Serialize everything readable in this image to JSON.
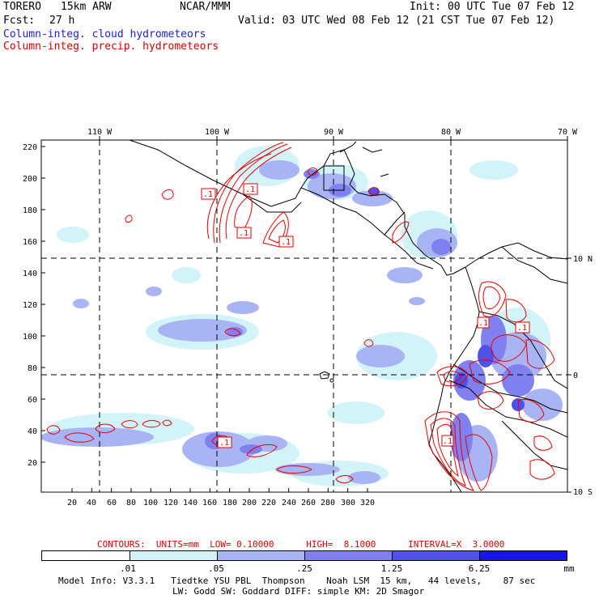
{
  "header": {
    "model": "TORERO",
    "resolution": "15km ARW",
    "org": "NCAR/MMM",
    "init": "Init: 00 UTC Tue 07 Feb 12",
    "fcst_label": "Fcst:",
    "fcst_value": "27 h",
    "valid": "Valid: 03 UTC Wed 08 Feb 12 (21 CST Tue 07 Feb 12)",
    "line_cloud": "Column-integ. cloud hydrometeors",
    "line_precip": "Column-integ. precip. hydrometeors"
  },
  "map": {
    "top_lon_labels": [
      "110 W",
      "100 W",
      "90 W",
      "80 W",
      "70 W"
    ],
    "right_lat_labels": [
      "10 N",
      "0",
      "10 S"
    ],
    "left_y_ticks": [
      "20",
      "40",
      "60",
      "80",
      "100",
      "120",
      "140",
      "160",
      "180",
      "200",
      "220"
    ],
    "bottom_x_ticks": [
      "20",
      "40",
      "60",
      "80",
      "100",
      "120",
      "140",
      "160",
      "180",
      "200",
      "220",
      "240",
      "260",
      "280",
      "300",
      "320"
    ],
    "contour_labels": [
      ".1",
      ".1",
      ".1",
      ".1",
      ".1",
      ".1",
      ".1",
      ".1"
    ],
    "colors": {
      "pale": "#d2f4f8",
      "light": "#a9b4f4",
      "mid": "#8080f0",
      "dark": "#4f4fe8",
      "contour": "#e60000",
      "grid": "#000000",
      "coast": "#000000"
    }
  },
  "footer": {
    "contours_line": "CONTOURS:  UNITS=mm  LOW= 0.10000      HIGH=  8.1000      INTERVAL=X  3.0000",
    "colorbar_labels": [
      ".01",
      ".05",
      ".25",
      "1.25",
      "6.25"
    ],
    "colorbar_unit": "mm",
    "colorbar_colors": [
      "#ffffff",
      "#d2f4f8",
      "#a9b4f4",
      "#8080f0",
      "#5050ea",
      "#1515e6"
    ],
    "info_line1": "Model Info: V3.3.1   Tiedtke YSU PBL  Thompson    Noah LSM  15 km,   44 levels,    87 sec",
    "info_line2": "LW: Godd SW: Goddard DIFF: simple KM: 2D Smagor"
  }
}
